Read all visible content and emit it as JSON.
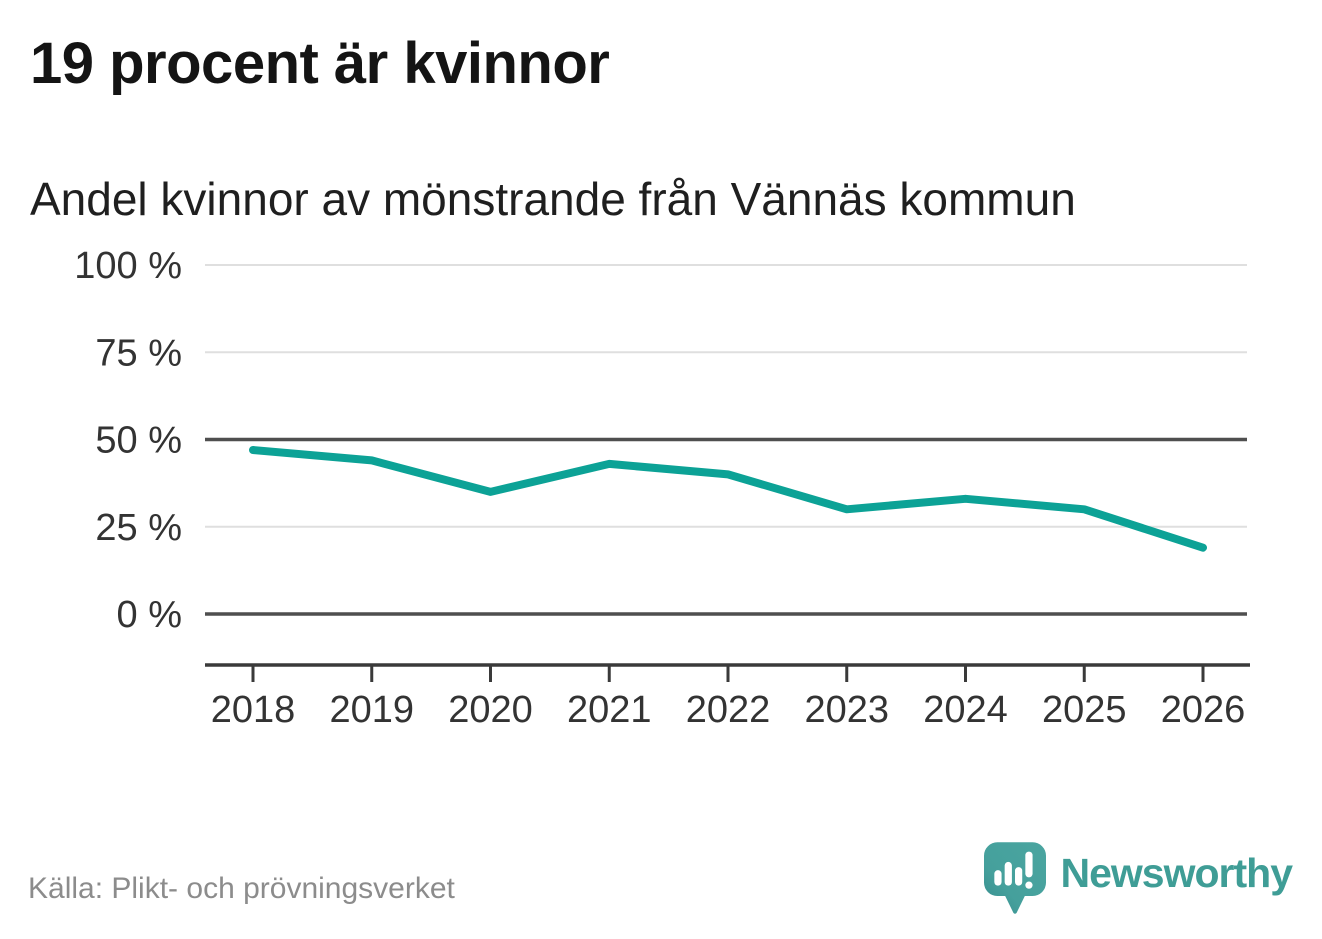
{
  "header": {
    "title": "19 procent är kvinnor",
    "subtitle": "Andel kvinnor av mönstrande från Vännäs kommun"
  },
  "chart_data": {
    "type": "line",
    "title": "19 procent är kvinnor",
    "subtitle": "Andel kvinnor av mönstrande från Vännäs kommun",
    "categories": [
      "2018",
      "2019",
      "2020",
      "2021",
      "2022",
      "2023",
      "2024",
      "2025",
      "2026"
    ],
    "series": [
      {
        "name": "Andel kvinnor av mönstrande",
        "values": [
          47,
          44,
          35,
          43,
          40,
          30,
          33,
          30,
          19
        ]
      }
    ],
    "unit": "%",
    "ylim": [
      0,
      100
    ],
    "yticks": [
      0,
      25,
      50,
      75,
      100
    ],
    "ytick_labels": [
      "0 %",
      "25 %",
      "50 %",
      "75 %",
      "100 %"
    ],
    "emphasized_gridlines": [
      0,
      50
    ],
    "grid": true,
    "legend": "none",
    "line_color": "#0ca296"
  },
  "colors": {
    "line": "#0ca296",
    "grid_light": "#dfdfdf",
    "grid_dark": "#4f4f4f",
    "axis": "#3a3a3a",
    "axis_text": "#333333",
    "source_text": "#8c8c8c",
    "brand_teal": "#3f9d96",
    "icon_teal_top": "#4aa5a0",
    "icon_teal_bottom": "#358b8c"
  },
  "footer": {
    "source": "Källa: Plikt- och prövningsverket",
    "brand": "Newsworthy"
  }
}
